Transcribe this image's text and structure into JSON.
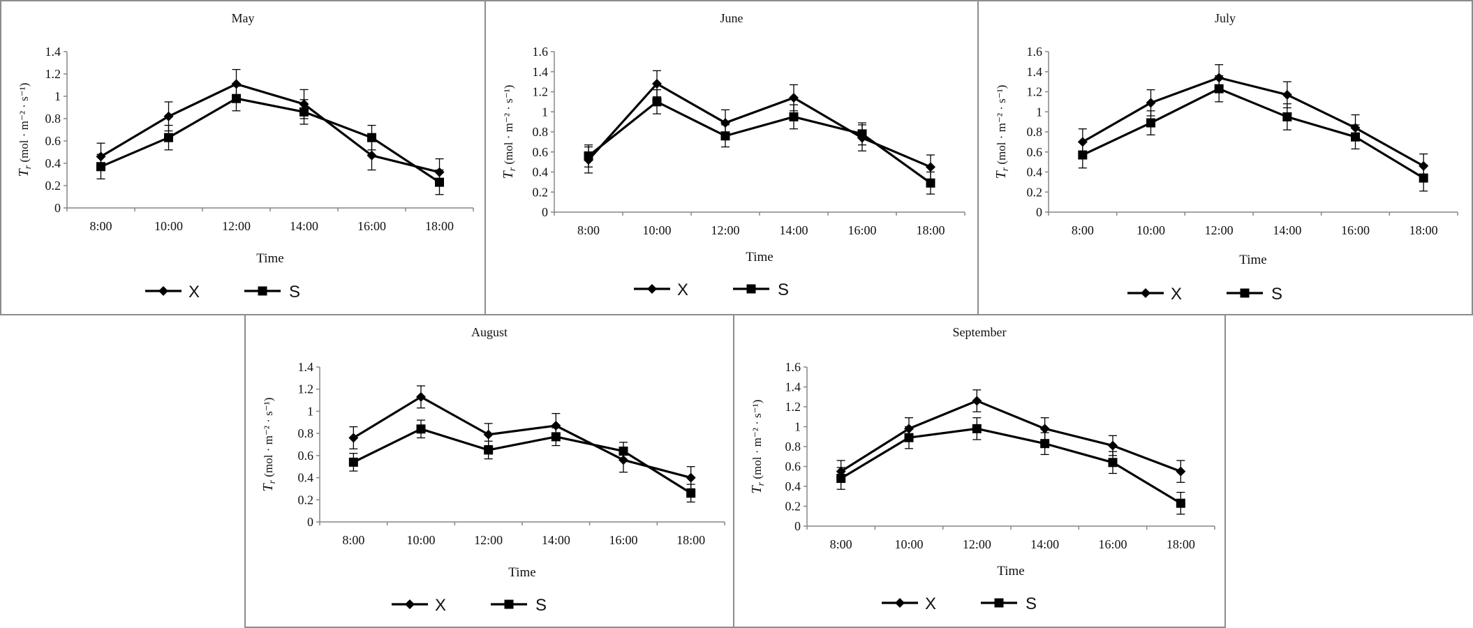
{
  "chart_data": [
    {
      "type": "line",
      "title": "May",
      "xlabel": "Time",
      "ylabel": "Tr (mol · m⁻² · s⁻¹)",
      "ylabel_base": "T",
      "ylabel_sub": "r",
      "ylabel_rest": " (mol · m⁻² · s⁻¹)",
      "categories": [
        "8:00",
        "10:00",
        "12:00",
        "14:00",
        "16:00",
        "18:00"
      ],
      "ylim": [
        0,
        1.4
      ],
      "yticks": [
        "0",
        "0.2",
        "0.4",
        "0.6",
        "0.8",
        "1",
        "1.2",
        "1.4"
      ],
      "series": [
        {
          "name": "X",
          "values": [
            0.46,
            0.82,
            1.11,
            0.93,
            0.47,
            0.32
          ],
          "errors": [
            0.12,
            0.13,
            0.13,
            0.13,
            0.13,
            0.12
          ]
        },
        {
          "name": "S",
          "values": [
            0.37,
            0.63,
            0.98,
            0.86,
            0.63,
            0.23
          ],
          "errors": [
            0.11,
            0.11,
            0.11,
            0.11,
            0.11,
            0.11
          ]
        }
      ]
    },
    {
      "type": "line",
      "title": "June",
      "xlabel": "Time",
      "ylabel": "Tr (mol · m⁻² · s⁻¹)",
      "ylabel_base": "T",
      "ylabel_sub": "r",
      "ylabel_rest": " (mol · m⁻² · s⁻¹)",
      "categories": [
        "8:00",
        "10:00",
        "12:00",
        "14:00",
        "16:00",
        "18:00"
      ],
      "ylim": [
        0,
        1.6
      ],
      "yticks": [
        "0",
        "0.2",
        "0.4",
        "0.6",
        "0.8",
        "1",
        "1.2",
        "1.4",
        "1.6"
      ],
      "series": [
        {
          "name": "X",
          "values": [
            0.52,
            1.28,
            0.89,
            1.14,
            0.74,
            0.45
          ],
          "errors": [
            0.13,
            0.13,
            0.13,
            0.13,
            0.13,
            0.12
          ]
        },
        {
          "name": "S",
          "values": [
            0.56,
            1.1,
            0.76,
            0.95,
            0.78,
            0.29
          ],
          "errors": [
            0.11,
            0.12,
            0.11,
            0.12,
            0.11,
            0.11
          ]
        }
      ]
    },
    {
      "type": "line",
      "title": "July",
      "xlabel": "Time",
      "ylabel": "Tr (mol · m⁻² · s⁻¹)",
      "ylabel_base": "T",
      "ylabel_sub": "r",
      "ylabel_rest": " (mol · m⁻² · s⁻¹)",
      "categories": [
        "8:00",
        "10:00",
        "12:00",
        "14:00",
        "16:00",
        "18:00"
      ],
      "ylim": [
        0,
        1.6
      ],
      "yticks": [
        "0",
        "0.2",
        "0.4",
        "0.6",
        "0.8",
        "1",
        "1.2",
        "1.4",
        "1.6"
      ],
      "series": [
        {
          "name": "X",
          "values": [
            0.7,
            1.09,
            1.34,
            1.17,
            0.84,
            0.46
          ],
          "errors": [
            0.13,
            0.13,
            0.13,
            0.13,
            0.13,
            0.12
          ]
        },
        {
          "name": "S",
          "values": [
            0.57,
            0.89,
            1.23,
            0.95,
            0.75,
            0.34
          ],
          "errors": [
            0.13,
            0.12,
            0.13,
            0.13,
            0.12,
            0.13
          ]
        }
      ]
    },
    {
      "type": "line",
      "title": "August",
      "xlabel": "Time",
      "ylabel": "Tr (mol · m⁻² · s⁻¹)",
      "ylabel_base": "T",
      "ylabel_sub": "r",
      "ylabel_rest": " (mol · m⁻² · s⁻¹)",
      "categories": [
        "8:00",
        "10:00",
        "12:00",
        "14:00",
        "16:00",
        "18:00"
      ],
      "ylim": [
        0,
        1.4
      ],
      "yticks": [
        "0",
        "0.2",
        "0.4",
        "0.6",
        "0.8",
        "1",
        "1.2",
        "1.4"
      ],
      "series": [
        {
          "name": "X",
          "values": [
            0.76,
            1.13,
            0.79,
            0.87,
            0.56,
            0.4
          ],
          "errors": [
            0.1,
            0.1,
            0.1,
            0.11,
            0.11,
            0.1
          ]
        },
        {
          "name": "S",
          "values": [
            0.54,
            0.84,
            0.65,
            0.77,
            0.64,
            0.26
          ],
          "errors": [
            0.08,
            0.08,
            0.08,
            0.08,
            0.08,
            0.08
          ]
        }
      ]
    },
    {
      "type": "line",
      "title": "September",
      "xlabel": "Time",
      "ylabel": "Tr (mol · m⁻² · s⁻¹)",
      "ylabel_base": "T",
      "ylabel_sub": "r",
      "ylabel_rest": " (mol · m⁻² · s⁻¹)",
      "categories": [
        "8:00",
        "10:00",
        "12:00",
        "14:00",
        "16:00",
        "18:00"
      ],
      "ylim": [
        0,
        1.6
      ],
      "yticks": [
        "0",
        "0.2",
        "0.4",
        "0.6",
        "0.8",
        "1",
        "1.2",
        "1.4",
        "1.6"
      ],
      "series": [
        {
          "name": "X",
          "values": [
            0.55,
            0.98,
            1.26,
            0.98,
            0.81,
            0.55
          ],
          "errors": [
            0.11,
            0.11,
            0.11,
            0.11,
            0.1,
            0.11
          ]
        },
        {
          "name": "S",
          "values": [
            0.48,
            0.89,
            0.98,
            0.83,
            0.64,
            0.23
          ],
          "errors": [
            0.11,
            0.11,
            0.11,
            0.11,
            0.11,
            0.11
          ]
        }
      ]
    }
  ],
  "legend": {
    "x_label": "X",
    "s_label": "S"
  },
  "colors": {
    "line": "#000000",
    "axis": "#868686",
    "border": "#8c8c8c"
  }
}
